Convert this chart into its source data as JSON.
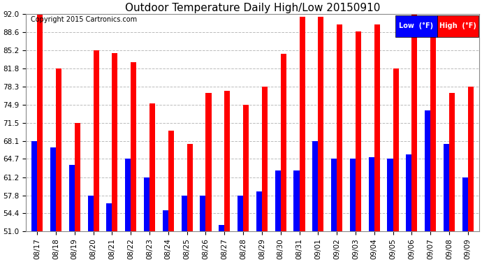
{
  "title": "Outdoor Temperature Daily High/Low 20150910",
  "copyright": "Copyright 2015 Cartronics.com",
  "legend_low": "Low  (°F)",
  "legend_high": "High  (°F)",
  "dates": [
    "08/17",
    "08/18",
    "08/19",
    "08/20",
    "08/21",
    "08/22",
    "08/23",
    "08/24",
    "08/25",
    "08/26",
    "08/27",
    "08/28",
    "08/29",
    "08/30",
    "08/31",
    "09/01",
    "09/02",
    "09/03",
    "09/04",
    "09/05",
    "09/06",
    "09/07",
    "09/08",
    "09/09"
  ],
  "highs": [
    92.0,
    81.8,
    71.5,
    85.2,
    84.6,
    83.0,
    75.2,
    70.0,
    67.5,
    77.2,
    77.5,
    74.9,
    78.3,
    84.5,
    91.5,
    91.5,
    90.0,
    88.8,
    90.0,
    81.8,
    92.0,
    89.0,
    77.2,
    78.3
  ],
  "lows": [
    68.1,
    66.8,
    63.5,
    57.8,
    56.3,
    64.7,
    61.2,
    55.0,
    57.8,
    57.8,
    52.2,
    57.8,
    58.5,
    62.5,
    62.5,
    68.1,
    64.7,
    64.7,
    65.0,
    64.7,
    65.5,
    73.8,
    67.5,
    61.2
  ],
  "ylim_min": 51.0,
  "ylim_max": 92.0,
  "yticks": [
    51.0,
    54.4,
    57.8,
    61.2,
    64.7,
    68.1,
    71.5,
    74.9,
    78.3,
    81.8,
    85.2,
    88.6,
    92.0
  ],
  "bar_color_high": "#ff0000",
  "bar_color_low": "#0000ff",
  "legend_low_bg": "#0000ff",
  "legend_high_bg": "#ff0000",
  "legend_text_color": "#ffffff",
  "bg_color": "#ffffff",
  "grid_color": "#bbbbbb",
  "title_fontsize": 11,
  "tick_fontsize": 7.5,
  "copyright_fontsize": 7
}
